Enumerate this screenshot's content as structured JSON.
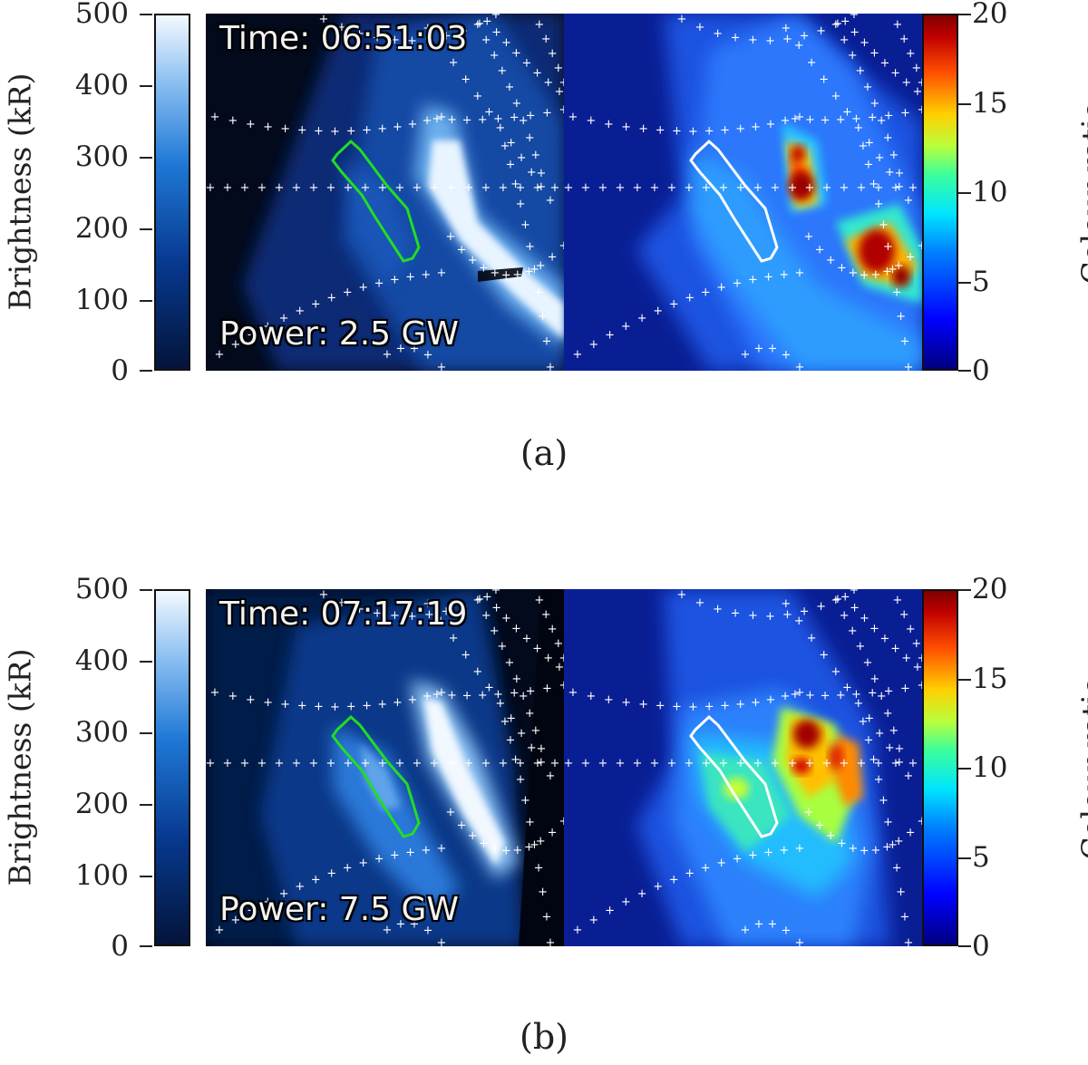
{
  "figure": {
    "panels": [
      {
        "time": "Time: 06:51:03",
        "power": "Power: 2.5 GW",
        "caption": "(a)"
      },
      {
        "time": "Time: 07:17:19",
        "power": "Power: 7.5 GW",
        "caption": "(b)"
      }
    ],
    "left_colorbar": {
      "label": "Brightness (kR)",
      "ticks": [
        "500",
        "400",
        "300",
        "200",
        "100",
        "0"
      ],
      "range": [
        0,
        500
      ],
      "colors": [
        "#04143a",
        "#f4f9ff"
      ]
    },
    "right_colorbar": {
      "label": "Colour ratio",
      "ticks": [
        "20",
        "15",
        "10",
        "5",
        "0"
      ],
      "range": [
        0,
        20
      ],
      "colormap": "jet"
    },
    "region_outline_colors": {
      "left": "#22dd22",
      "right": "#ffffff"
    }
  }
}
